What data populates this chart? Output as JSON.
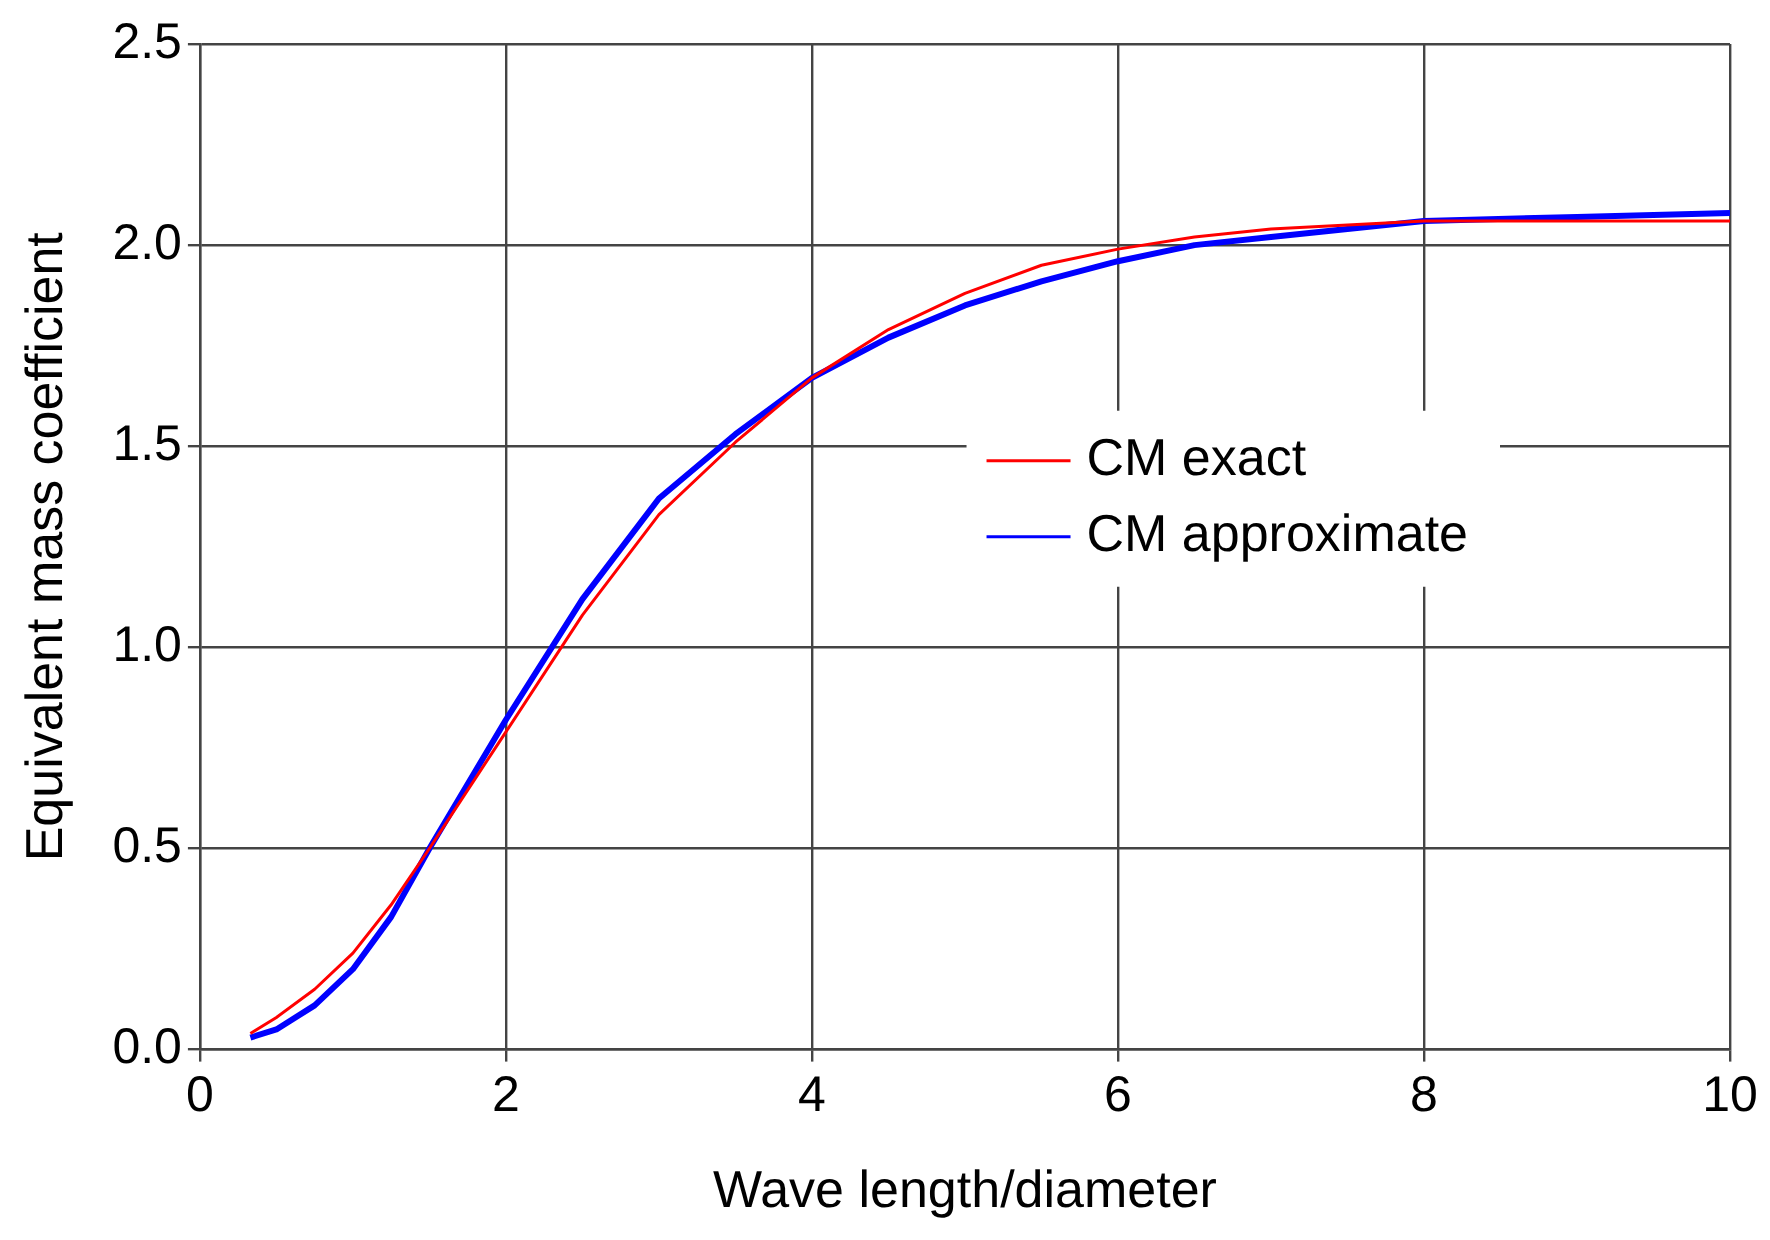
{
  "chart_data": {
    "type": "line",
    "xlabel": "Wave length/diameter",
    "ylabel": "Equivalent mass coefficient",
    "x": [
      0.33,
      0.5,
      0.75,
      1.0,
      1.25,
      1.5,
      2.0,
      2.5,
      3.0,
      3.5,
      4.0,
      4.5,
      5.0,
      5.5,
      6.0,
      6.5,
      7.0,
      8.0,
      9.0,
      10.0
    ],
    "series": [
      {
        "name": "CM exact",
        "color": "#ff0000",
        "values": [
          0.04,
          0.08,
          0.15,
          0.24,
          0.36,
          0.5,
          0.79,
          1.08,
          1.33,
          1.51,
          1.67,
          1.79,
          1.88,
          1.95,
          1.99,
          2.02,
          2.04,
          2.06,
          2.06,
          2.06
        ]
      },
      {
        "name": "CM approximate",
        "color": "#0000ff",
        "values": [
          0.03,
          0.05,
          0.11,
          0.2,
          0.33,
          0.5,
          0.82,
          1.12,
          1.37,
          1.53,
          1.67,
          1.77,
          1.85,
          1.91,
          1.96,
          2.0,
          2.02,
          2.06,
          2.07,
          2.08
        ]
      }
    ],
    "xlim": [
      0,
      10
    ],
    "xticks": [
      0,
      2,
      4,
      6,
      8,
      10
    ],
    "ylim": [
      0,
      2.5
    ],
    "yticks": [
      {
        "value": 0,
        "label": "0.0"
      },
      {
        "value": 0.5,
        "label": "0.5"
      },
      {
        "value": 1,
        "label": "1.0"
      },
      {
        "value": 1.5,
        "label": "1.5"
      },
      {
        "value": 2,
        "label": "2.0"
      },
      {
        "value": 2.5,
        "label": "2.5"
      }
    ],
    "grid": true,
    "legend": "right",
    "marker": "none",
    "line_style": "solid"
  }
}
